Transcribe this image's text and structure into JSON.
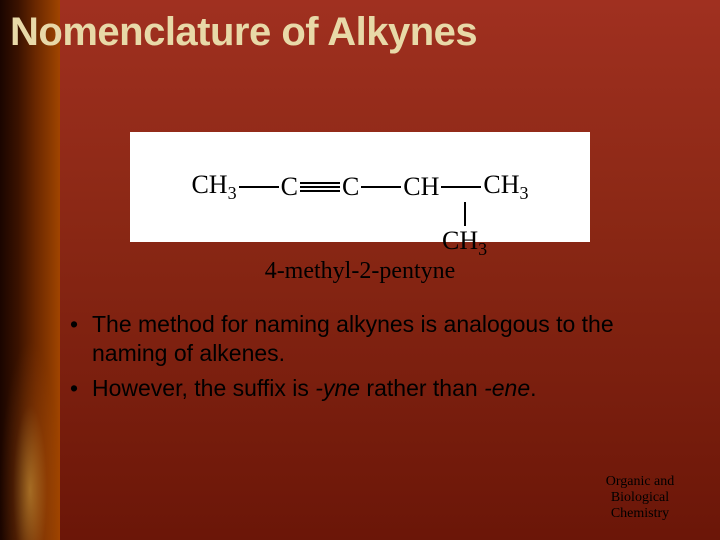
{
  "title": "Nomenclature of Alkynes",
  "structure": {
    "atoms": {
      "c1": "CH",
      "c1sub": "3",
      "c2": "C",
      "c3": "C",
      "c4": "CH",
      "c5": "CH",
      "c5sub": "3",
      "branch": "CH",
      "branchsub": "3"
    },
    "background": "#ffffff",
    "text_color": "#000000",
    "font_family": "Times New Roman",
    "atom_fontsize": 26,
    "sub_fontsize": 18
  },
  "compound_name": "4-methyl-2-pentyne",
  "bullets": {
    "b1_a": "The method for naming alkynes is analogous to the naming of alkenes.",
    "b2_a": "However, the suffix is ",
    "b2_yne": "-yne",
    "b2_b": " rather than ",
    "b2_ene": "-ene",
    "b2_c": "."
  },
  "footer": {
    "l1": "Organic and",
    "l2": "Biological",
    "l3": "Chemistry"
  },
  "styling": {
    "slide_size": [
      720,
      540
    ],
    "title_color": "#e8d9a8",
    "title_fontsize": 40,
    "title_font": "Arial Black",
    "body_fontsize": 23,
    "body_color": "#000000",
    "compound_name_fontsize": 24,
    "compound_name_font": "Times New Roman",
    "background_gradient": [
      "#a03020",
      "#8b2815",
      "#6b1608"
    ],
    "left_strip_gradient": [
      "#1a0500",
      "#3a1200",
      "#6b2800",
      "#a04500"
    ],
    "footer_triangle_color": "rgba(240,200,60,0.75)",
    "footer_fontsize": 14
  }
}
